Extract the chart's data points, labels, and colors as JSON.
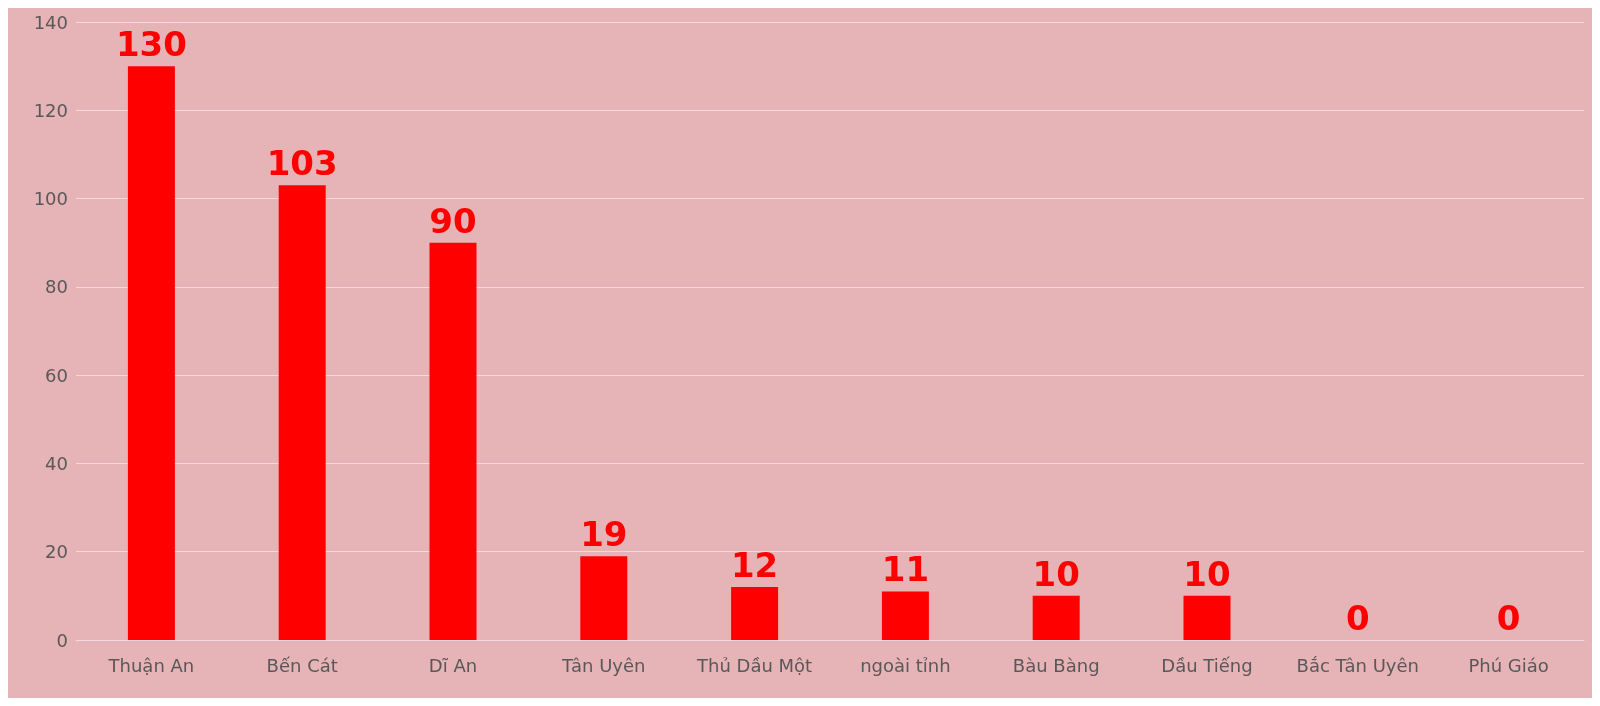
{
  "chart_data": {
    "type": "bar",
    "categories": [
      "Thuận An",
      "Bến Cát",
      "Dĩ An",
      "Tân Uyên",
      "Thủ Dầu Một",
      "ngoài tỉnh",
      "Bàu Bàng",
      "Dầu Tiếng",
      "Bắc Tân Uyên",
      "Phú Giáo"
    ],
    "values": [
      130,
      103,
      90,
      19,
      12,
      11,
      10,
      10,
      0,
      0
    ],
    "color": "#ff0000",
    "ylim": [
      0,
      140
    ],
    "yticks": [
      0,
      20,
      40,
      60,
      80,
      100,
      120,
      140
    ],
    "grid": "y",
    "data_labels": true
  }
}
